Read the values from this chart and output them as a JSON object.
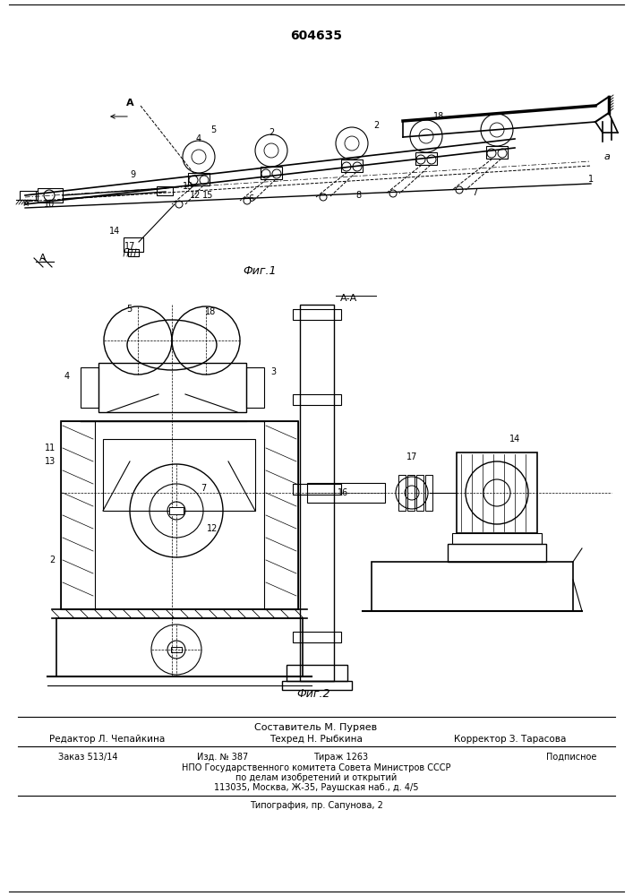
{
  "patent_number": "604635",
  "fig1_label": "Фиг.1",
  "fig2_label": "Фиг.2",
  "bg_color": "#ffffff",
  "line_color": "#000000",
  "footer": {
    "compiler": "Составитель М. Пуряев",
    "editor": "Редактор Л. Чепайкина",
    "techred": "Техред Н. Рыбкина",
    "corrector": "Корректор З. Тарасова",
    "order": "Заказ 513/14",
    "izdanie": "Изд. № 387",
    "tirazh": "Тираж 1263",
    "podpisnoe": "Подписное",
    "npo": "НПО Государственного комитета Совета Министров СССР",
    "po_delam": "по делам изобретений и открытий",
    "address": "113035, Москва, Ж-35, Раушская наб., д. 4/5",
    "tipografia": "Типография, пр. Сапунова, 2"
  }
}
